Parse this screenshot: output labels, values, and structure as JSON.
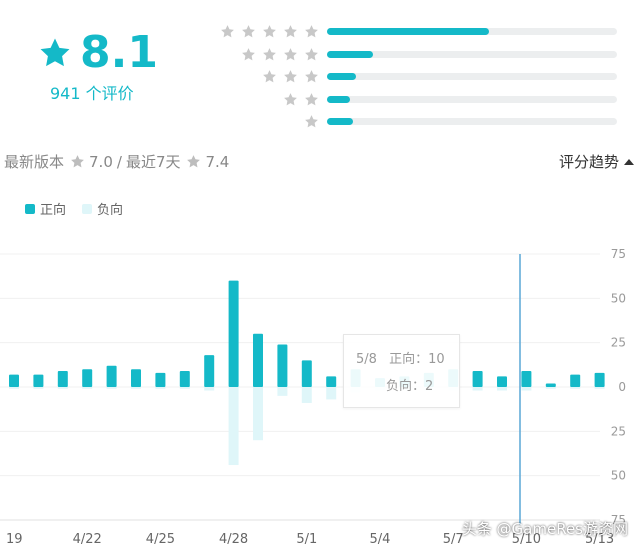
{
  "summary": {
    "score": "8.1",
    "review_count": "941 个评价",
    "accent_color": "#14b9c8",
    "icon": "star-icon"
  },
  "distribution": [
    {
      "stars": 5,
      "fraction": 0.56
    },
    {
      "stars": 4,
      "fraction": 0.16
    },
    {
      "stars": 3,
      "fraction": 0.1
    },
    {
      "stars": 2,
      "fraction": 0.08
    },
    {
      "stars": 1,
      "fraction": 0.09
    }
  ],
  "version": {
    "latest_label": "最新版本",
    "latest_score": "7.0",
    "separator": "/",
    "recent_label": "最近7天",
    "recent_score": "7.4"
  },
  "trend_toggle": {
    "label": "评分趋势",
    "icon": "caret-up-icon"
  },
  "legend": {
    "positive": "正向",
    "negative": "负向",
    "positive_color": "#14b9c8",
    "negative_color": "#dff6f9"
  },
  "tooltip": {
    "date": "5/8",
    "positive_label": "正向：",
    "positive_value": "10",
    "negative_label": "负向：",
    "negative_value": "2"
  },
  "chart_data": {
    "type": "bar",
    "x_tick_labels": [
      "19",
      "4/22",
      "4/25",
      "4/28",
      "5/1",
      "5/4",
      "5/7",
      "5/10",
      "5/13"
    ],
    "y_tick_labels": [
      "75",
      "50",
      "25",
      "0",
      "25",
      "50",
      "75"
    ],
    "ylim": [
      -75,
      75
    ],
    "series": [
      {
        "name": "正向",
        "values": [
          7,
          7,
          9,
          10,
          12,
          10,
          8,
          9,
          18,
          60,
          30,
          24,
          15,
          6,
          10,
          5,
          6,
          8,
          10,
          9,
          6,
          9,
          2,
          7,
          8
        ]
      },
      {
        "name": "负向",
        "values": [
          -1,
          -1,
          -1,
          -1,
          -1,
          -1,
          -1,
          -1,
          -2,
          -44,
          -30,
          -5,
          -9,
          -7,
          -3,
          -2,
          -2,
          -2,
          -2,
          -2,
          -2,
          -2,
          -1,
          -1,
          -1
        ]
      }
    ],
    "highlight_index": 20,
    "grid": true
  },
  "watermark": "头条 @GameRes游资网"
}
